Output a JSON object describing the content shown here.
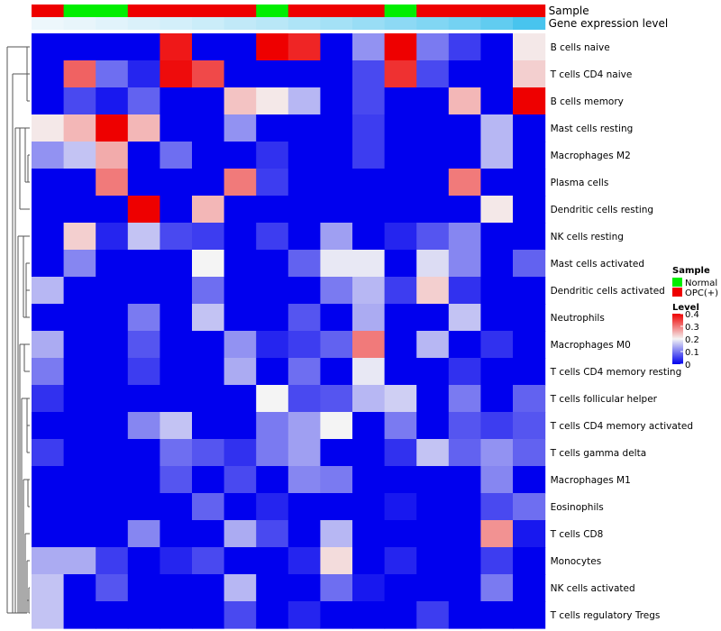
{
  "chart_data": {
    "type": "heatmap",
    "annotations": [
      {
        "label": "Sample",
        "values": [
          "OPC(+)",
          "Normal",
          "Normal",
          "OPC(+)",
          "OPC(+)",
          "OPC(+)",
          "OPC(+)",
          "Normal",
          "OPC(+)",
          "OPC(+)",
          "OPC(+)",
          "Normal",
          "OPC(+)",
          "OPC(+)",
          "OPC(+)",
          "OPC(+)"
        ]
      },
      {
        "label": "Gene expression level",
        "values": [
          0.02,
          0.05,
          0.09,
          0.13,
          0.17,
          0.22,
          0.28,
          0.33,
          0.39,
          0.45,
          0.52,
          0.59,
          0.66,
          0.74,
          0.85,
          1.0
        ]
      }
    ],
    "rows": [
      "B cells naive",
      "T cells CD4 naive",
      "B cells memory",
      "Mast cells resting",
      "Macrophages M2",
      "Plasma cells",
      "Dendritic cells resting",
      "NK cells resting",
      "Mast cells activated",
      "Dendritic cells activated",
      "Neutrophils",
      "Macrophages M0",
      "T cells CD4 memory resting",
      "T cells follicular helper",
      "T cells CD4 memory activated",
      "T cells gamma delta",
      "Macrophages M1",
      "Eosinophils",
      "T cells CD8",
      "Monocytes",
      "NK cells activated",
      "T cells regulatory  Tregs"
    ],
    "values": [
      [
        0,
        0,
        0,
        0,
        0.38,
        0,
        0,
        0.4,
        0.37,
        0,
        0.12,
        0.4,
        0.1,
        0.05,
        0,
        0.21
      ],
      [
        0,
        0.32,
        0.09,
        0.03,
        0.39,
        0.34,
        0,
        0,
        0,
        0,
        0.06,
        0.36,
        0.06,
        0,
        0,
        0.23
      ],
      [
        0,
        0.06,
        0.02,
        0.08,
        0,
        0,
        0.24,
        0.21,
        0.15,
        0,
        0.06,
        0,
        0,
        0.25,
        0,
        0.4
      ],
      [
        0.21,
        0.25,
        0.4,
        0.25,
        0,
        0,
        0.12,
        0,
        0,
        0,
        0.05,
        0,
        0,
        0,
        0.15,
        0
      ],
      [
        0.12,
        0.16,
        0.26,
        0,
        0.09,
        0,
        0,
        0.04,
        0,
        0,
        0.05,
        0,
        0,
        0,
        0.15,
        0
      ],
      [
        0,
        0,
        0.3,
        0,
        0,
        0,
        0.3,
        0.05,
        0,
        0,
        0,
        0,
        0,
        0.3,
        0,
        0
      ],
      [
        0,
        0,
        0,
        0.4,
        0,
        0.25,
        0,
        0,
        0,
        0,
        0,
        0,
        0,
        0,
        0.21,
        0
      ],
      [
        0,
        0.23,
        0.03,
        0.16,
        0.06,
        0.05,
        0,
        0.05,
        0,
        0.13,
        0,
        0.03,
        0.07,
        0.11,
        0,
        0
      ],
      [
        0,
        0.11,
        0,
        0,
        0,
        0.2,
        0,
        0,
        0.08,
        0.19,
        0.19,
        0,
        0.18,
        0.11,
        0,
        0.08
      ],
      [
        0.15,
        0,
        0,
        0,
        0,
        0.09,
        0,
        0,
        0,
        0.1,
        0.15,
        0.05,
        0.23,
        0.04,
        0,
        0
      ],
      [
        0,
        0,
        0,
        0.1,
        0,
        0.16,
        0,
        0,
        0.07,
        0,
        0.14,
        0,
        0,
        0.16,
        0,
        0
      ],
      [
        0.14,
        0,
        0,
        0.07,
        0,
        0,
        0.12,
        0.03,
        0.05,
        0.08,
        0.3,
        0,
        0.15,
        0,
        0.04,
        0
      ],
      [
        0.1,
        0,
        0,
        0.05,
        0,
        0,
        0.14,
        0,
        0.09,
        0,
        0.19,
        0,
        0,
        0.04,
        0,
        0
      ],
      [
        0.04,
        0,
        0,
        0,
        0,
        0,
        0,
        0.2,
        0.06,
        0.07,
        0.15,
        0.17,
        0,
        0.1,
        0,
        0.08
      ],
      [
        0,
        0,
        0,
        0.11,
        0.16,
        0,
        0,
        0.1,
        0.13,
        0.2,
        0,
        0.1,
        0,
        0.07,
        0.05,
        0.07
      ],
      [
        0.05,
        0,
        0,
        0,
        0.09,
        0.07,
        0.04,
        0.1,
        0.13,
        0,
        0,
        0.04,
        0.16,
        0.08,
        0.12,
        0.08
      ],
      [
        0,
        0,
        0,
        0,
        0.07,
        0,
        0.06,
        0,
        0.11,
        0.1,
        0,
        0,
        0,
        0,
        0.11,
        0
      ],
      [
        0,
        0,
        0,
        0,
        0,
        0.08,
        0,
        0.03,
        0,
        0,
        0,
        0.02,
        0,
        0,
        0.06,
        0.09
      ],
      [
        0,
        0,
        0,
        0.11,
        0,
        0,
        0.14,
        0.06,
        0,
        0.15,
        0,
        0,
        0,
        0,
        0.28,
        0.02
      ],
      [
        0.14,
        0.14,
        0.05,
        0,
        0.03,
        0.06,
        0,
        0,
        0.03,
        0.22,
        0,
        0.03,
        0,
        0,
        0.05,
        0
      ],
      [
        0.16,
        0,
        0.07,
        0,
        0,
        0,
        0.15,
        0,
        0,
        0.09,
        0.02,
        0,
        0,
        0,
        0.1,
        0
      ],
      [
        0.16,
        0,
        0,
        0,
        0,
        0,
        0.06,
        0,
        0.03,
        0,
        0,
        0,
        0.05,
        0,
        0,
        0
      ]
    ],
    "legend": {
      "sample_title": "Sample",
      "sample_entries": [
        {
          "label": "Normal",
          "color": "#00EE00"
        },
        {
          "label": "OPC(+)",
          "color": "#EE0000"
        }
      ],
      "level_title": "Level",
      "level_ticks": [
        "0.4",
        "0.3",
        "0.2",
        "0.1",
        "0"
      ],
      "colors": {
        "low": "#0000EE",
        "mid": "#F4F4F4",
        "high": "#EE0000"
      }
    }
  }
}
